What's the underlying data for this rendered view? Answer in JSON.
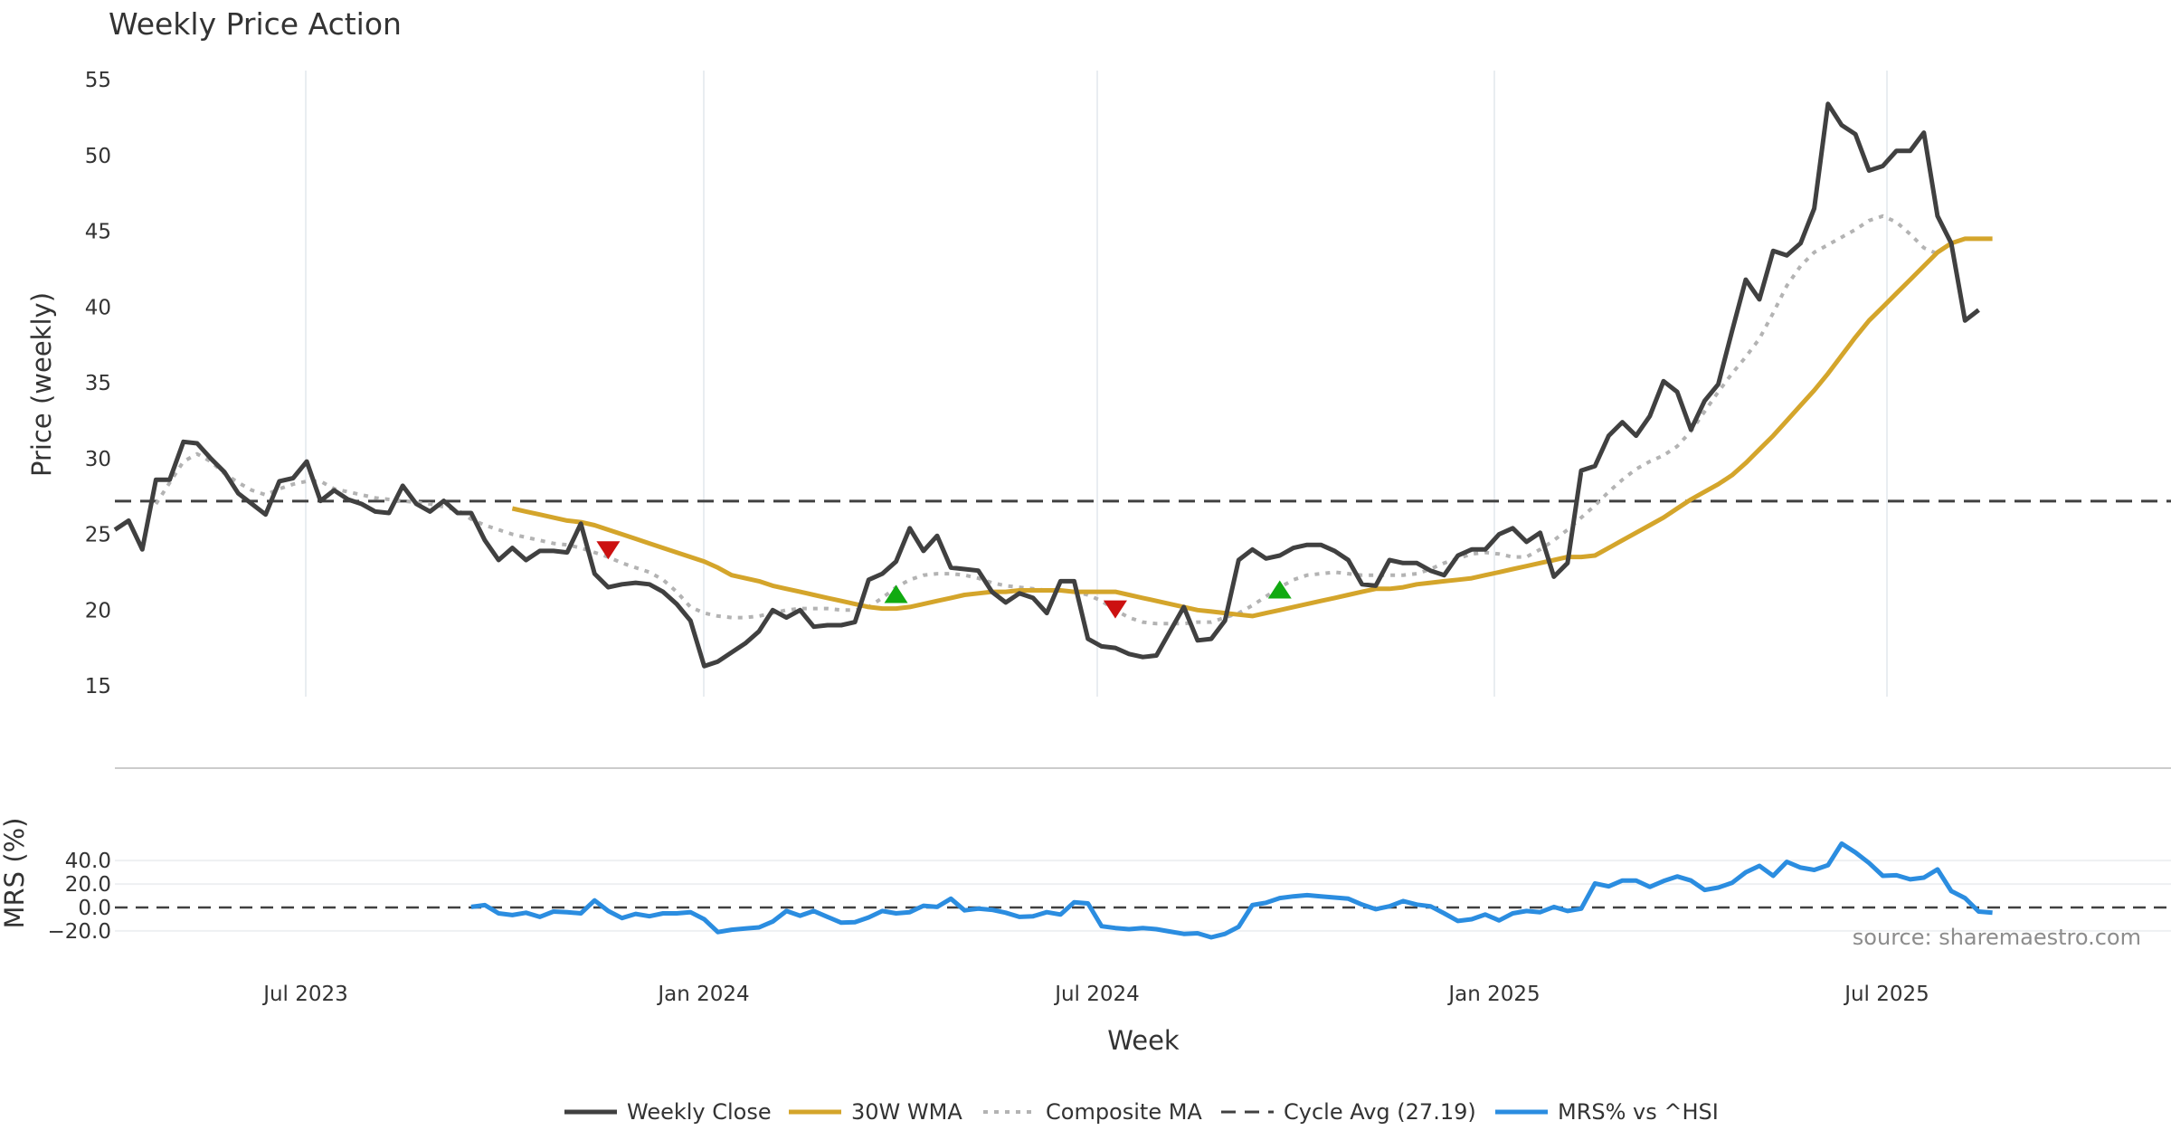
{
  "chart_data": {
    "type": "line",
    "title": "Weekly Price Action",
    "source": "source: sharemaestro.com",
    "xlabel": "Week",
    "x_ticks": [
      "Jul 2023",
      "Jan 2024",
      "Jul 2024",
      "Jan 2025",
      "Jul 2025"
    ],
    "price_panel": {
      "ylabel": "Price (weekly)",
      "ylim": [
        15,
        55
      ],
      "y_ticks": [
        "15",
        "20",
        "25",
        "30",
        "35",
        "40",
        "45",
        "50",
        "55"
      ],
      "cycle_avg": 27.19,
      "series": [
        {
          "name": "Weekly Close",
          "color": "#404040",
          "values": [
            25.3,
            25.9,
            24.0,
            28.6,
            28.6,
            31.1,
            31.0,
            30.0,
            29.1,
            27.7,
            27.0,
            26.3,
            28.5,
            28.7,
            29.8,
            27.2,
            27.9,
            27.3,
            27.0,
            26.5,
            26.4,
            28.2,
            27.0,
            26.5,
            27.2,
            26.4,
            26.4,
            24.6,
            23.3,
            24.1,
            23.3,
            23.9,
            23.9,
            23.8,
            25.7,
            22.4,
            21.5,
            21.7,
            21.8,
            21.7,
            21.2,
            20.4,
            19.3,
            16.3,
            16.6,
            17.2,
            17.8,
            18.6,
            20.0,
            19.5,
            20.0,
            18.9,
            19.0,
            19.0,
            19.2,
            22.0,
            22.4,
            23.2,
            25.4,
            23.9,
            24.9,
            22.8,
            22.7,
            22.6,
            21.2,
            20.5,
            21.1,
            20.8,
            19.8,
            21.9,
            21.9,
            18.1,
            17.6,
            17.5,
            17.1,
            16.9,
            17.0,
            18.6,
            20.2,
            18.0,
            18.1,
            19.3,
            23.3,
            24.0,
            23.4,
            23.6,
            24.1,
            24.3,
            24.3,
            23.9,
            23.3,
            21.7,
            21.6,
            23.3,
            23.1,
            23.1,
            22.6,
            22.3,
            23.6,
            24.0,
            24.0,
            25.0,
            25.4,
            24.5,
            25.1,
            22.2,
            23.1,
            29.2,
            29.5,
            31.5,
            32.4,
            31.5,
            32.8,
            35.1,
            34.4,
            31.9,
            33.8,
            34.9,
            38.4,
            41.8,
            40.5,
            43.7,
            43.4,
            44.2,
            46.5,
            53.4,
            52.0,
            51.4,
            49.0,
            49.3,
            50.3,
            50.3,
            51.5,
            46.0,
            44.2,
            39.1,
            39.8
          ]
        },
        {
          "name": "30W WMA",
          "color": "#d4a52b",
          "start_index": 29,
          "values": [
            26.7,
            26.5,
            26.3,
            26.1,
            25.9,
            25.8,
            25.6,
            25.3,
            25.0,
            24.7,
            24.4,
            24.1,
            23.8,
            23.5,
            23.2,
            22.8,
            22.3,
            22.1,
            21.9,
            21.6,
            21.4,
            21.2,
            21.0,
            20.8,
            20.6,
            20.4,
            20.2,
            20.1,
            20.1,
            20.2,
            20.4,
            20.6,
            20.8,
            21.0,
            21.1,
            21.2,
            21.2,
            21.3,
            21.3,
            21.3,
            21.3,
            21.2,
            21.2,
            21.2,
            21.2,
            21.0,
            20.8,
            20.6,
            20.4,
            20.2,
            20.0,
            19.9,
            19.8,
            19.7,
            19.6,
            19.8,
            20.0,
            20.2,
            20.4,
            20.6,
            20.8,
            21.0,
            21.2,
            21.4,
            21.4,
            21.5,
            21.7,
            21.8,
            21.9,
            22.0,
            22.1,
            22.3,
            22.5,
            22.7,
            22.9,
            23.1,
            23.3,
            23.5,
            23.5,
            23.6,
            24.1,
            24.6,
            25.1,
            25.6,
            26.1,
            26.7,
            27.3,
            27.8,
            28.3,
            28.9,
            29.7,
            30.6,
            31.5,
            32.5,
            33.5,
            34.5,
            35.6,
            36.8,
            38.0,
            39.1,
            40.0,
            40.9,
            41.8,
            42.7,
            43.6,
            44.2,
            44.5,
            44.5,
            44.5
          ]
        },
        {
          "name": "Composite MA",
          "color": "#b3b3b3",
          "start_index": 3,
          "values": [
            27.0,
            28.4,
            29.8,
            30.3,
            29.8,
            29.0,
            28.4,
            27.9,
            27.6,
            28.0,
            28.3,
            28.5,
            28.5,
            28.0,
            27.8,
            27.6,
            27.4,
            27.3,
            27.2,
            27.1,
            27.0,
            26.8,
            26.6,
            26.0,
            25.6,
            25.3,
            25.0,
            24.8,
            24.6,
            24.4,
            24.3,
            24.1,
            23.8,
            23.5,
            23.1,
            22.8,
            22.5,
            22.0,
            21.2,
            20.2,
            19.8,
            19.6,
            19.5,
            19.5,
            19.6,
            19.8,
            20.0,
            20.1,
            20.1,
            20.1,
            20.0,
            20.0,
            20.2,
            20.8,
            21.5,
            22.0,
            22.3,
            22.4,
            22.4,
            22.3,
            22.1,
            21.8,
            21.6,
            21.5,
            21.4,
            21.3,
            21.3,
            21.2,
            21.0,
            20.6,
            20.0,
            19.5,
            19.2,
            19.1,
            19.1,
            19.1,
            19.2,
            19.2,
            19.5,
            19.8,
            20.3,
            20.9,
            21.5,
            22.0,
            22.3,
            22.4,
            22.5,
            22.4,
            22.3,
            22.3,
            22.3,
            22.3,
            22.4,
            22.7,
            23.1,
            23.4,
            23.7,
            23.8,
            23.7,
            23.5,
            23.5,
            24.0,
            24.6,
            25.3,
            26.1,
            26.9,
            27.8,
            28.6,
            29.3,
            29.8,
            30.2,
            30.8,
            31.8,
            33.1,
            34.4,
            35.6,
            36.7,
            37.9,
            39.6,
            41.4,
            42.7,
            43.6,
            44.1,
            44.6,
            45.1,
            45.7,
            46.0,
            45.6,
            44.8,
            43.9,
            43.5
          ]
        }
      ],
      "signals": [
        {
          "type": "sell",
          "index": 36,
          "value": 24.0,
          "color": "#cc1111"
        },
        {
          "type": "buy",
          "index": 57,
          "value": 21.0,
          "color": "#11aa11"
        },
        {
          "type": "sell",
          "index": 73,
          "value": 20.1,
          "color": "#cc1111"
        },
        {
          "type": "buy",
          "index": 85,
          "value": 21.3,
          "color": "#11aa11"
        }
      ]
    },
    "mrs_panel": {
      "ylabel": "MRS (%)",
      "ylim": [
        -25,
        57
      ],
      "y_ticks": [
        "40.0",
        "20.0",
        "0.0",
        "−20.0"
      ],
      "series": [
        {
          "name": "MRS% vs ^HSI",
          "color": "#2b8de0",
          "start_index": 26,
          "values": [
            0.5,
            2.0,
            -5.0,
            -6.5,
            -4.5,
            -8.0,
            -3.5,
            -4.0,
            -5.0,
            6.0,
            -3.0,
            -9.0,
            -5.5,
            -7.5,
            -5.0,
            -5.0,
            -4.0,
            -10.0,
            -21.0,
            -19.0,
            -18.0,
            -17.0,
            -12.0,
            -3.0,
            -7.0,
            -3.0,
            -8.0,
            -13.0,
            -12.5,
            -8.5,
            -3.0,
            -5.0,
            -4.0,
            1.5,
            0.5,
            7.5,
            -2.5,
            -1.0,
            -2.0,
            -4.5,
            -8.0,
            -7.5,
            -4.0,
            -6.0,
            4.5,
            3.5,
            -16.0,
            -17.5,
            -18.5,
            -17.5,
            -18.5,
            -20.5,
            -22.5,
            -22.0,
            -25.5,
            -22.5,
            -16.5,
            2.0,
            4.0,
            8.0,
            9.5,
            10.5,
            9.5,
            8.5,
            7.5,
            2.5,
            -1.5,
            1.0,
            5.5,
            2.5,
            1.0,
            -5.0,
            -11.5,
            -10.0,
            -6.0,
            -11.0,
            -5.0,
            -3.0,
            -4.0,
            0.5,
            -3.0,
            -1.0,
            20.5,
            18.0,
            23.0,
            23.0,
            17.5,
            22.5,
            26.5,
            23.0,
            15.0,
            17.0,
            21.0,
            30.0,
            35.5,
            27.0,
            39.0,
            34.0,
            32.0,
            36.0,
            54.5,
            47.0,
            38.0,
            27.0,
            27.5,
            24.0,
            25.5,
            32.5,
            14.0,
            8.0,
            -3.5,
            -4.5
          ]
        }
      ]
    },
    "legend": [
      {
        "label": "Weekly Close",
        "style": "solid",
        "color": "#404040"
      },
      {
        "label": "30W WMA",
        "style": "solid",
        "color": "#d4a52b"
      },
      {
        "label": "Composite MA",
        "style": "dotted",
        "color": "#b3b3b3"
      },
      {
        "label": "Cycle Avg (27.19)",
        "style": "dashed",
        "color": "#404040"
      },
      {
        "label": "MRS% vs ^HSI",
        "style": "solid",
        "color": "#2b8de0"
      }
    ]
  }
}
